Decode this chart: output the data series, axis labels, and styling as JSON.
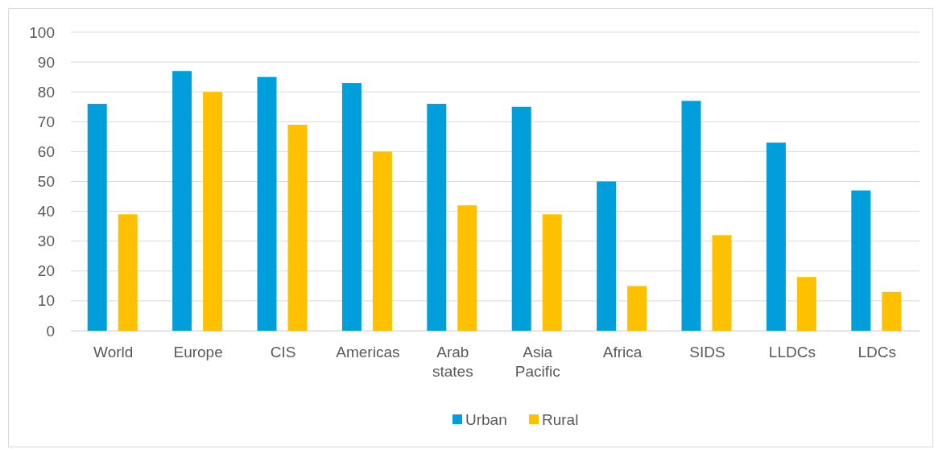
{
  "chart_data": {
    "type": "bar",
    "categories": [
      "World",
      "Europe",
      "CIS",
      "Americas",
      "Arab states",
      "Asia Pacific",
      "Africa",
      "SIDS",
      "LLDCs",
      "LDCs"
    ],
    "series": [
      {
        "name": "Urban",
        "color": "#009fdb",
        "values": [
          76,
          87,
          85,
          83,
          76,
          75,
          50,
          77,
          63,
          47
        ]
      },
      {
        "name": "Rural",
        "color": "#ffc000",
        "values": [
          39,
          80,
          69,
          60,
          42,
          39,
          15,
          32,
          18,
          13
        ]
      }
    ],
    "ylim": [
      0,
      100
    ],
    "yticks": [
      0,
      10,
      20,
      30,
      40,
      50,
      60,
      70,
      80,
      90,
      100
    ],
    "grid": "y",
    "legend": "bottom"
  }
}
